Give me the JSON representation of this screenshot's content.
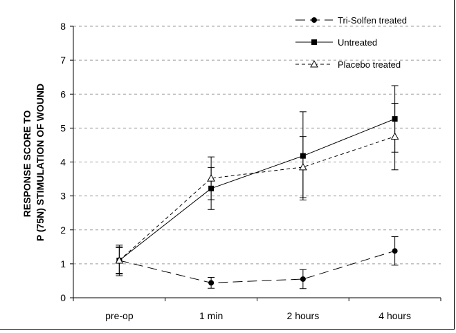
{
  "chart_data": {
    "type": "line",
    "categories": [
      "pre-op",
      "1 min",
      "2 hours",
      "4 hours"
    ],
    "ylabel_lines": [
      "RESPONSE SCORE TO",
      "P (75N) STIMULATION OF WOUND"
    ],
    "xlabel": "",
    "title": "",
    "ylim": [
      0,
      8
    ],
    "yticks": [
      0,
      1,
      2,
      3,
      4,
      5,
      6,
      7,
      8
    ],
    "ytick_labels": [
      "0",
      "1",
      "2",
      "3",
      "4",
      "5",
      "6",
      "7",
      "8"
    ],
    "grid": "horizontal dashed",
    "legend_position": "top-right",
    "series": [
      {
        "name": "Tri-Solfen treated",
        "marker": "circle",
        "line_style": "long-dash",
        "color": "#000000",
        "values": [
          1.1,
          0.44,
          0.55,
          1.38
        ],
        "error": [
          0.38,
          0.16,
          0.28,
          0.42
        ]
      },
      {
        "name": "Untreated",
        "marker": "square",
        "line_style": "solid",
        "color": "#000000",
        "values": [
          1.1,
          3.22,
          4.18,
          5.27
        ],
        "error": [
          0.45,
          0.62,
          1.3,
          0.98
        ]
      },
      {
        "name": "Placebo treated",
        "marker": "triangle-open",
        "line_style": "short-dash",
        "color": "#000000",
        "values": [
          1.1,
          3.52,
          3.85,
          4.75
        ],
        "error": [
          0.4,
          0.63,
          0.9,
          0.98
        ]
      }
    ]
  }
}
